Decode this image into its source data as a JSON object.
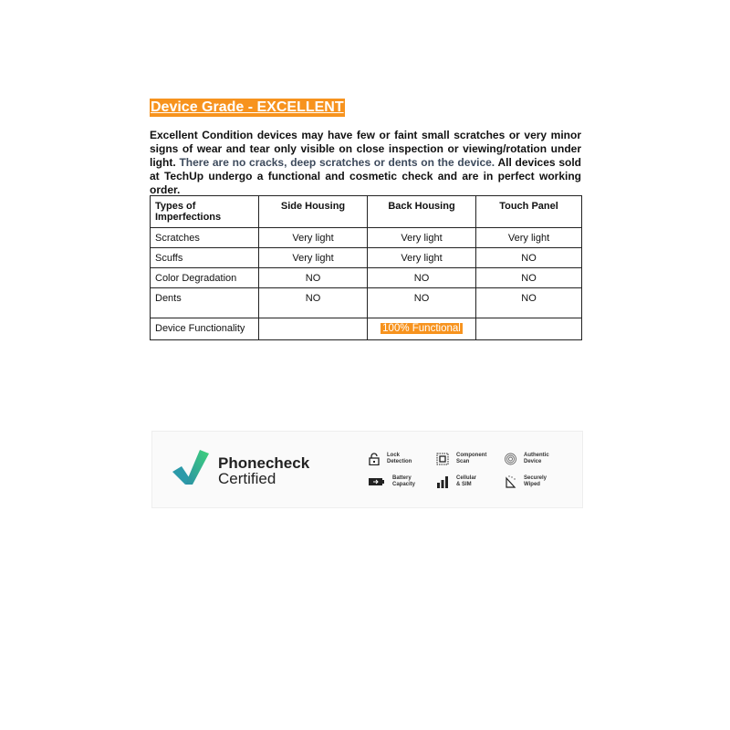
{
  "heading": "Device Grade - EXCELLENT",
  "description": {
    "part1": "Excellent Condition devices may have few or faint small scratches or very minor signs of wear and tear only visible on close inspection or viewing/rotation under light.",
    "part2": "There are no cracks, deep scratches or dents on the device.",
    "part3": "All devices sold at TechUp undergo a functional and cosmetic check and are in perfect working order."
  },
  "colors": {
    "accent": "#f7931e"
  },
  "table": {
    "headers": [
      "Types of Imperfections",
      "Side Housing",
      "Back Housing",
      "Touch Panel"
    ],
    "rows": [
      [
        "Scratches",
        "Very light",
        "Very light",
        "Very light"
      ],
      [
        "Scuffs",
        "Very light",
        "Very light",
        "NO"
      ],
      [
        "Color Degradation",
        "NO",
        "NO",
        "NO"
      ],
      [
        "Dents",
        "NO",
        "NO",
        "NO"
      ]
    ],
    "functionality": {
      "label": "Device Functionality",
      "side": "",
      "back": "100% Functional",
      "touch": ""
    }
  },
  "banner": {
    "brand_line1": "Phonecheck",
    "brand_line2": "Certified",
    "features": [
      {
        "icon": "lock-icon",
        "l1": "Lock",
        "l2": "Detection"
      },
      {
        "icon": "component-scan-icon",
        "l1": "Component",
        "l2": "Scan"
      },
      {
        "icon": "fingerprint-icon",
        "l1": "Authentic",
        "l2": "Device"
      },
      {
        "icon": "battery-icon",
        "l1": "Battery",
        "l2": "Capacity"
      },
      {
        "icon": "cellular-icon",
        "l1": "Cellular",
        "l2": "& SIM"
      },
      {
        "icon": "wipe-icon",
        "l1": "Securely",
        "l2": "Wiped"
      }
    ]
  }
}
